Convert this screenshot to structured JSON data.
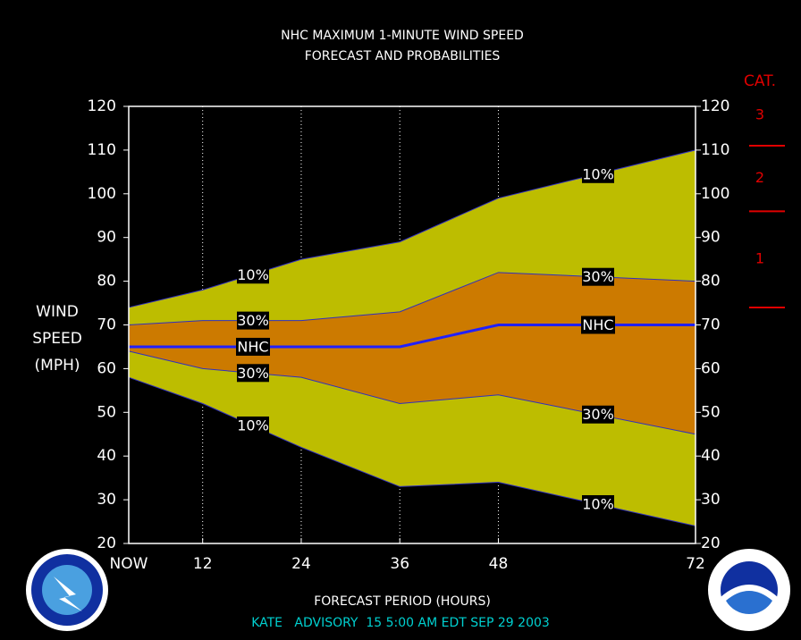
{
  "chart_data": {
    "type": "band",
    "title": "NHC MAXIMUM 1-MINUTE WIND SPEED",
    "subtitle": "FORECAST AND PROBABILITIES",
    "y_label": [
      "WIND",
      "SPEED",
      "(MPH)"
    ],
    "x_label": "FORECAST PERIOD (HOURS)",
    "footer": "KATE   ADVISORY  15 5:00 AM EDT SEP 29 2003",
    "x": [
      3,
      12,
      24,
      36,
      48,
      72
    ],
    "xlim": [
      3,
      72
    ],
    "xticks": [
      {
        "value": 3,
        "label": "NOW"
      },
      12,
      24,
      36,
      48,
      72
    ],
    "ylim": [
      20,
      120
    ],
    "yticks": [
      20,
      30,
      40,
      50,
      60,
      70,
      80,
      90,
      100,
      110,
      120
    ],
    "series": [
      {
        "name": "10%",
        "color": "#bdbd00",
        "values": [
          74,
          78,
          85,
          89,
          99,
          110
        ]
      },
      {
        "name": "30%",
        "color": "#cc7a00",
        "values": [
          70,
          71,
          71,
          73,
          82,
          80
        ]
      },
      {
        "name": "NHC",
        "color": "#2020ff",
        "values": [
          65,
          65,
          65,
          65,
          70,
          70
        ]
      },
      {
        "name": "30%",
        "color": "#cc7a00",
        "values": [
          64,
          60,
          58,
          52,
          54,
          45
        ]
      },
      {
        "name": "10%",
        "color": "#bdbd00",
        "values": [
          58,
          52,
          42,
          33,
          34,
          24
        ]
      }
    ],
    "category_title": "CAT.",
    "categories": [
      "1",
      "2",
      "3"
    ],
    "category_thresholds": [
      74,
      96,
      111
    ],
    "category_color": "#e00000"
  }
}
